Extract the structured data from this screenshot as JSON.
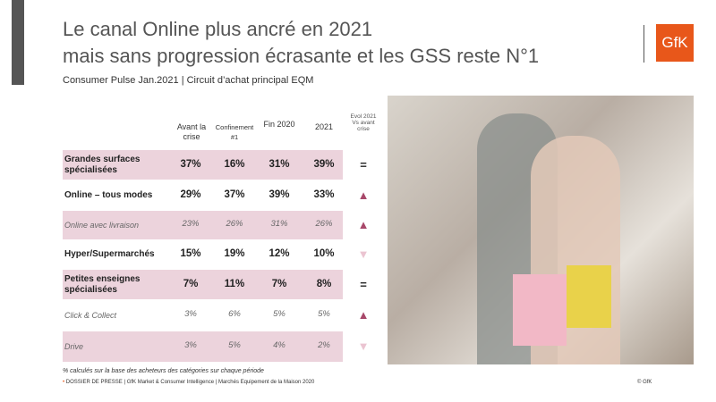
{
  "header": {
    "title_line1": "Le canal Online plus ancré en 2021",
    "title_line2": "mais sans progression écrasante et les GSS reste N°1",
    "subtitle": "Consumer Pulse Jan.2021 | Circuit d’achat principal EQM",
    "logo": "GfK"
  },
  "table": {
    "columns": [
      "Avant la crise",
      "Confinement #1",
      "Fin 2020",
      "2021",
      "Evol 2021 Vs avant crise"
    ],
    "rows": [
      [
        "Grandes surfaces spécialisées",
        "37%",
        "16%",
        "31%",
        "39%",
        "="
      ],
      [
        "Online – tous modes",
        "29%",
        "37%",
        "39%",
        "33%",
        "▲"
      ],
      [
        "Online avec livraison",
        "23%",
        "26%",
        "31%",
        "26%",
        "▲"
      ],
      [
        "Hyper/Supermarchés",
        "15%",
        "19%",
        "12%",
        "10%",
        "▼"
      ],
      [
        "Petites enseignes spécialisées",
        "7%",
        "11%",
        "7%",
        "8%",
        "="
      ],
      [
        "Click & Collect",
        "3%",
        "6%",
        "5%",
        "5%",
        "▲"
      ],
      [
        "Drive",
        "3%",
        "5%",
        "4%",
        "2%",
        "▼"
      ]
    ]
  },
  "footer": {
    "note": "% calculés sur la base des acheteurs des catégories sur chaque période",
    "source": "DOSSIER DE PRESSE | GfK Market & Consumer Intelligence | Marchés Equipement de la Maison 2020",
    "copyright": "© GfK"
  }
}
